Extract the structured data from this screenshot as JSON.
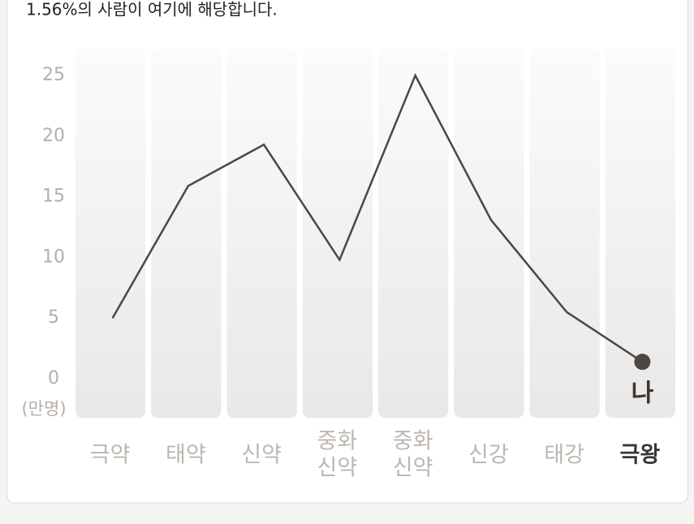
{
  "chart_data": {
    "type": "line",
    "subtitle": "1.56%의 사람이 여기에 해당합니다.",
    "y_unit": "(만명)",
    "categories": [
      [
        "극약"
      ],
      [
        "태약"
      ],
      [
        "신약"
      ],
      [
        "중화",
        "신약"
      ],
      [
        "중화",
        "신약"
      ],
      [
        "신강"
      ],
      [
        "태강"
      ],
      [
        "극왕"
      ]
    ],
    "values": [
      5,
      15.9,
      19.3,
      9.8,
      25,
      13.1,
      5.5,
      1.4
    ],
    "color": "#4a4745",
    "highlight_index": 7,
    "marker_label": "나",
    "ylim": [
      0,
      25
    ],
    "yticks": [
      0,
      5,
      10,
      15,
      20,
      25
    ]
  }
}
